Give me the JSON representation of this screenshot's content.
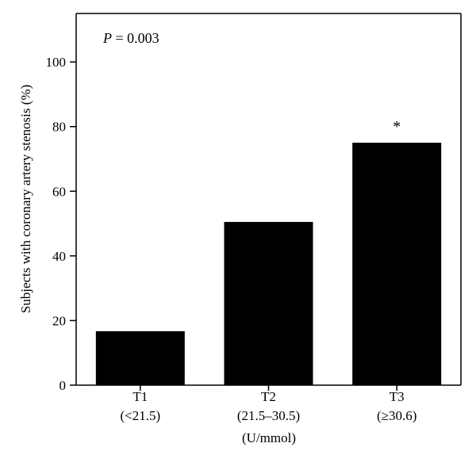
{
  "chart_data": {
    "type": "bar",
    "categories": [
      "T1",
      "T2",
      "T3"
    ],
    "category_sublabels": [
      "(<21.5)",
      "(21.5–30.5)",
      "(≥30.6)"
    ],
    "values": [
      16.7,
      50.5,
      75.0
    ],
    "significance_marks": [
      "",
      "",
      "*"
    ],
    "xlabel": "(U/mmol)",
    "ylabel": "Subjects with coronary artery stenosis (%)",
    "ylim": [
      0,
      115
    ],
    "yticks": [
      0,
      20,
      40,
      60,
      80,
      100
    ],
    "annotation": {
      "italic_part": "P",
      "rest": " = 0.003"
    },
    "bar_color": "#000000",
    "grid": false,
    "legend": "none"
  }
}
